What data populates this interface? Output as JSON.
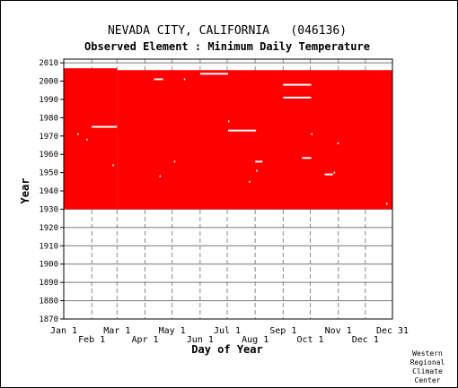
{
  "chart_data": {
    "type": "heatmap",
    "title": "NEVADA CITY, CALIFORNIA   (046136)",
    "subtitle": "Observed Element : Minimum Daily Temperature",
    "xlabel": "Day of Year",
    "ylabel": "Year",
    "xlim": [
      1,
      365
    ],
    "ylim": [
      1870,
      2012
    ],
    "y_ticks": [
      1870,
      1880,
      1890,
      1900,
      1910,
      1920,
      1930,
      1940,
      1950,
      1960,
      1970,
      1980,
      1990,
      2000,
      2010
    ],
    "x_ticks_top": [
      {
        "label": "Jan 1",
        "day": 1
      },
      {
        "label": "Mar 1",
        "day": 60
      },
      {
        "label": "May 1",
        "day": 121
      },
      {
        "label": "Jul 1",
        "day": 182
      },
      {
        "label": "Sep 1",
        "day": 244
      },
      {
        "label": "Nov 1",
        "day": 305
      },
      {
        "label": "Dec 31",
        "day": 365
      }
    ],
    "x_ticks_bottom": [
      {
        "label": "Feb 1",
        "day": 32
      },
      {
        "label": "Apr 1",
        "day": 91
      },
      {
        "label": "Jun 1",
        "day": 152
      },
      {
        "label": "Aug 1",
        "day": 213
      },
      {
        "label": "Oct 1",
        "day": 274
      },
      {
        "label": "Dec 1",
        "day": 335
      }
    ],
    "grid": true,
    "data_color": "#ff0000",
    "coverage": [
      {
        "start_day": 1,
        "end_day": 59,
        "start_year": 1930,
        "end_year": 2006
      },
      {
        "start_day": 60,
        "end_day": 365,
        "start_year": 1930,
        "end_year": 2005
      }
    ],
    "missing_segments": [
      {
        "year": 1998,
        "start_day": 244,
        "end_day": 274
      },
      {
        "year": 1991,
        "start_day": 244,
        "end_day": 274
      },
      {
        "year": 1975,
        "start_day": 32,
        "end_day": 59
      },
      {
        "year": 1973,
        "start_day": 183,
        "end_day": 213
      },
      {
        "year": 2004,
        "start_day": 152,
        "end_day": 182
      },
      {
        "year": 2001,
        "start_day": 101,
        "end_day": 110
      },
      {
        "year": 1958,
        "start_day": 265,
        "end_day": 274
      },
      {
        "year": 1956,
        "start_day": 213,
        "end_day": 220
      },
      {
        "year": 1949,
        "start_day": 290,
        "end_day": 298
      }
    ],
    "missing_days": [
      {
        "year": 2001,
        "day": 134
      },
      {
        "year": 1978,
        "day": 183
      },
      {
        "year": 1971,
        "day": 16
      },
      {
        "year": 1971,
        "day": 275
      },
      {
        "year": 1968,
        "day": 26
      },
      {
        "year": 1966,
        "day": 304
      },
      {
        "year": 1956,
        "day": 123
      },
      {
        "year": 1954,
        "day": 55
      },
      {
        "year": 1951,
        "day": 214
      },
      {
        "year": 1950,
        "day": 300
      },
      {
        "year": 1948,
        "day": 107
      },
      {
        "year": 1945,
        "day": 206
      },
      {
        "year": 1933,
        "day": 358
      }
    ]
  },
  "credit": [
    "Western",
    "Regional",
    "Climate",
    "Center"
  ]
}
